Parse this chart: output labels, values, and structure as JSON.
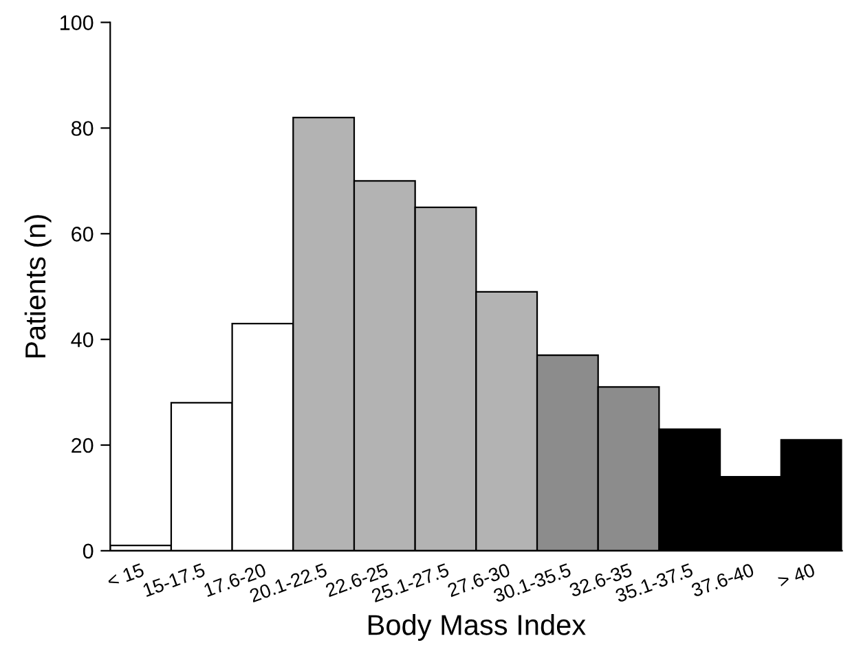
{
  "chart_data": {
    "type": "bar",
    "xlabel": "Body Mass Index",
    "ylabel": "Patients (n)",
    "categories": [
      "< 15",
      "15-17.5",
      "17.6-20",
      "20.1-22.5",
      "22.6-25",
      "25.1-27.5",
      "27.6-30",
      "30.1-35.5",
      "32.6-35",
      "35.1-37.5",
      "37.6-40",
      "> 40"
    ],
    "values": [
      1,
      28,
      43,
      82,
      70,
      65,
      49,
      37,
      31,
      23,
      14,
      21
    ],
    "colors": [
      "#ffffff",
      "#ffffff",
      "#ffffff",
      "#b3b3b3",
      "#b3b3b3",
      "#b3b3b3",
      "#b3b3b3",
      "#8c8c8c",
      "#8c8c8c",
      "#000000",
      "#000000",
      "#000000"
    ],
    "ylim": [
      0,
      100
    ],
    "yticks": [
      0,
      20,
      40,
      60,
      80,
      100
    ],
    "grid": false
  }
}
